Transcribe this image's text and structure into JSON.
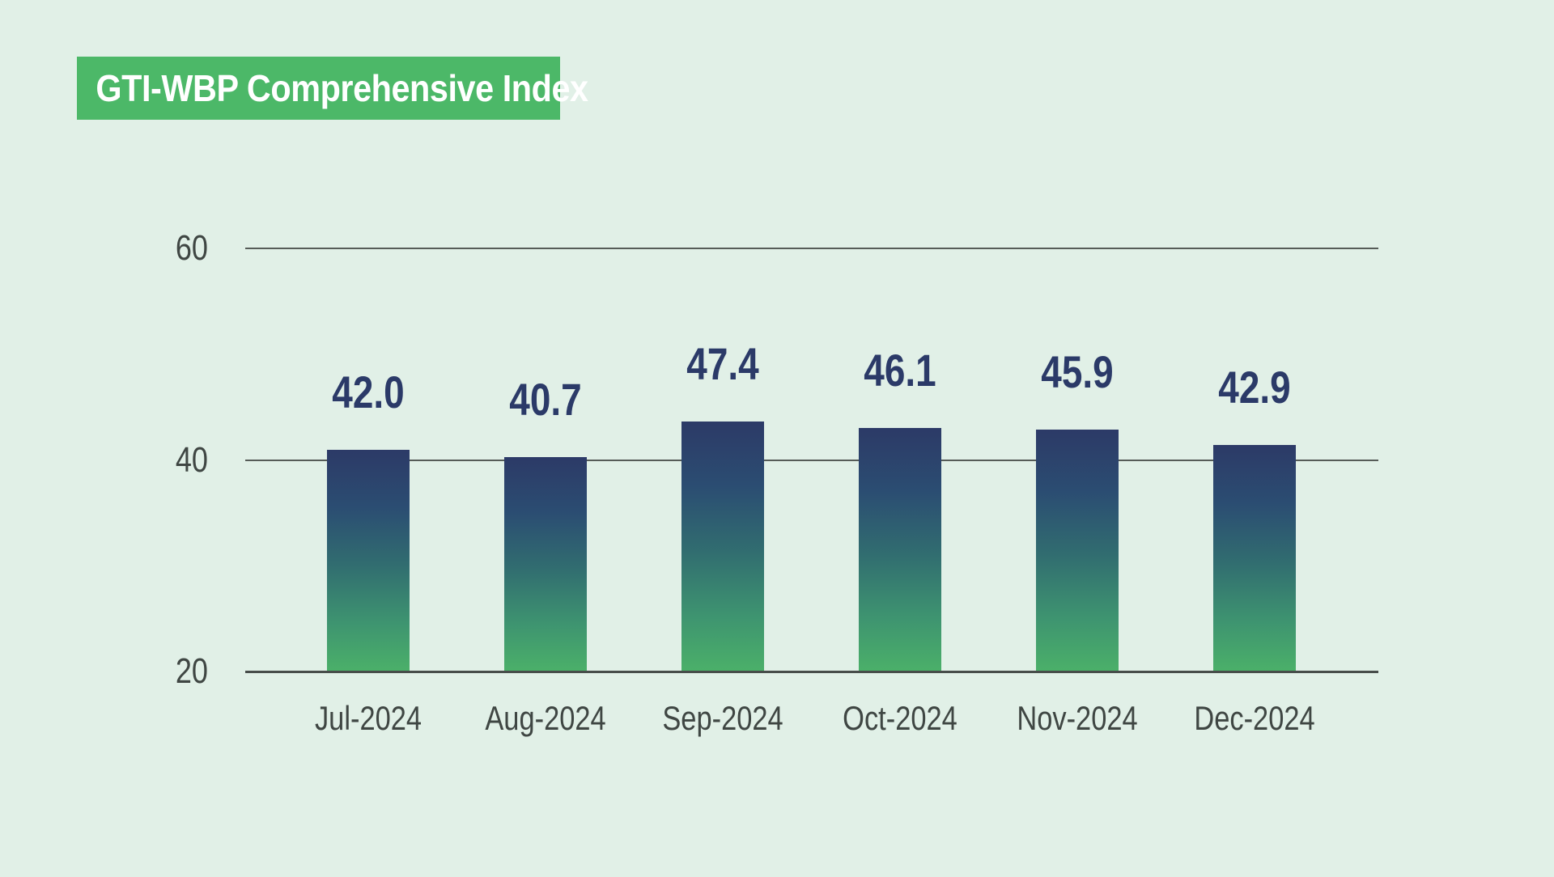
{
  "title": "GTI-WBP Comprehensive Index",
  "colors": {
    "background": "#e1f0e7",
    "title_box": "#4cb868",
    "title_text": "#ffffff",
    "bar_gradient_top": "#2c3a67",
    "bar_gradient_mid": "#316d70",
    "bar_gradient_bottom": "#4bb069",
    "value_label": "#2b3a68",
    "gridline": "#565c58",
    "axis_line": "#474d4a",
    "tick_label": "#3f4643"
  },
  "chart_data": {
    "type": "bar",
    "title": "GTI-WBP Comprehensive Index",
    "categories": [
      "Jul-2024",
      "Aug-2024",
      "Sep-2024",
      "Oct-2024",
      "Nov-2024",
      "Dec-2024"
    ],
    "values": [
      42.0,
      40.7,
      47.4,
      46.1,
      45.9,
      42.9
    ],
    "value_labels": [
      "42.0",
      "40.7",
      "47.4",
      "46.1",
      "45.9",
      "42.9"
    ],
    "series_name": "GTI-WBP Comprehensive Index",
    "xlabel": "",
    "ylabel": "",
    "yticks": [
      20,
      40,
      60
    ],
    "ylim": [
      20,
      60
    ],
    "grid": "horizontal",
    "legend": "none",
    "bar_label_position": "above"
  }
}
